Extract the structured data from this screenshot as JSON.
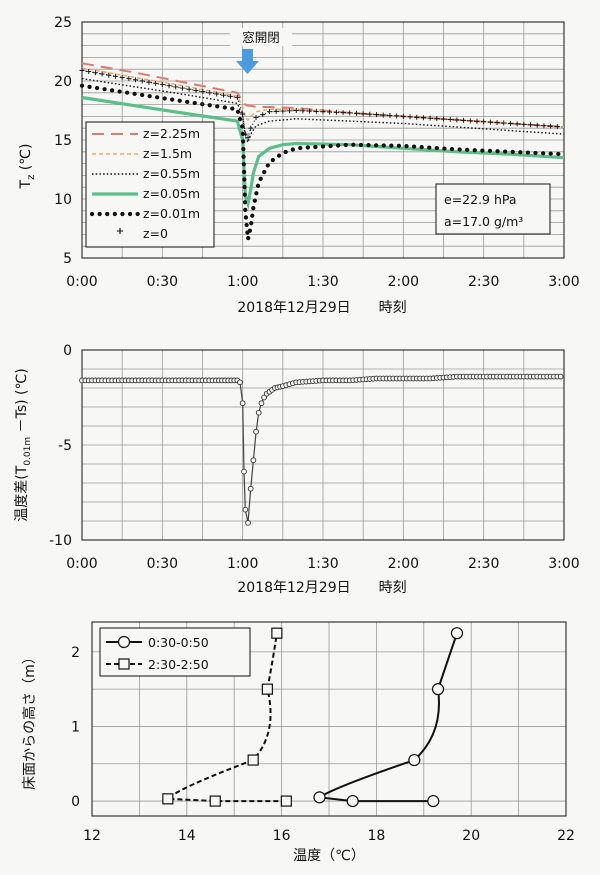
{
  "colors": {
    "red_dashed": "#e07a6e",
    "orange_dashed": "#f2a86b",
    "green": "#5cbf8a",
    "black": "#111111",
    "marker_fill": "#f7f7f5",
    "arrow": "#4a9be0"
  },
  "chart_data": [
    {
      "type": "line",
      "title": "",
      "ylabel": "Tz(℃)",
      "xlabel": "2018年12月29日　　時刻",
      "xlim": [
        0,
        180
      ],
      "ylim": [
        5,
        25
      ],
      "x_ticks": [
        "0:00",
        "0:30",
        "1:00",
        "1:30",
        "2:00",
        "2:30",
        "3:00"
      ],
      "y_ticks": [
        "5",
        "10",
        "15",
        "20",
        "25"
      ],
      "grid": true,
      "legend_position": "left-bottom",
      "annotation_arrow": "窓開閉",
      "annotation_box": [
        "e=22.9 hPa",
        "a=17.0 g/m³"
      ],
      "series": [
        {
          "name": "z=2.25m",
          "style": "red-dashed",
          "x": [
            0,
            20,
            40,
            58,
            60,
            61,
            62,
            63,
            65,
            70,
            80,
            100,
            120,
            140,
            160,
            180
          ],
          "y": [
            21.5,
            20.7,
            19.8,
            19.0,
            18.3,
            18.0,
            17.9,
            17.9,
            17.8,
            17.8,
            17.7,
            17.3,
            17.0,
            16.7,
            16.4,
            16.1
          ]
        },
        {
          "name": "z=1.5m",
          "style": "orange-dashed",
          "x": [
            0,
            20,
            40,
            58,
            60,
            61,
            62,
            63,
            65,
            70,
            80,
            100,
            120,
            140,
            160,
            180
          ],
          "y": [
            21.1,
            20.3,
            19.5,
            18.7,
            17.8,
            16.9,
            16.7,
            17.0,
            17.4,
            17.6,
            17.6,
            17.3,
            17.0,
            16.7,
            16.4,
            16.1
          ]
        },
        {
          "name": "z=0.55m",
          "style": "dotted-fine",
          "x": [
            0,
            20,
            40,
            58,
            60,
            61,
            62,
            63,
            65,
            70,
            80,
            100,
            120,
            140,
            160,
            180
          ],
          "y": [
            20.2,
            19.5,
            18.8,
            18.1,
            17.0,
            15.3,
            14.8,
            15.5,
            16.2,
            16.6,
            16.8,
            16.6,
            16.4,
            16.1,
            15.8,
            15.5
          ]
        },
        {
          "name": "z=0.05m",
          "style": "green-thick",
          "x": [
            0,
            20,
            40,
            58,
            60,
            61,
            62,
            63,
            64,
            66,
            70,
            75,
            80,
            100,
            120,
            140,
            160,
            180
          ],
          "y": [
            18.6,
            17.9,
            17.2,
            16.6,
            15.0,
            10.3,
            9.6,
            10.8,
            12.2,
            13.6,
            14.3,
            14.6,
            14.7,
            14.6,
            14.3,
            14.0,
            13.8,
            13.5
          ]
        },
        {
          "name": "z=0.01m",
          "style": "big-dots",
          "x": [
            0,
            20,
            40,
            58,
            60,
            61,
            62,
            63,
            64,
            66,
            70,
            75,
            80,
            100,
            120,
            140,
            160,
            180
          ],
          "y": [
            19.6,
            18.9,
            18.2,
            17.6,
            16.0,
            9.0,
            6.6,
            7.6,
            9.3,
            11.4,
            13.1,
            13.9,
            14.3,
            14.6,
            14.5,
            14.2,
            14.0,
            13.8
          ]
        },
        {
          "name": "z=0",
          "style": "plus",
          "x": [
            0,
            20,
            40,
            58,
            60,
            61,
            62,
            63,
            65,
            70,
            80,
            100,
            120,
            140,
            160,
            180
          ],
          "y": [
            20.9,
            20.1,
            19.3,
            18.6,
            17.2,
            15.5,
            15.2,
            16.0,
            16.9,
            17.4,
            17.5,
            17.3,
            17.0,
            16.7,
            16.4,
            16.1
          ]
        }
      ]
    },
    {
      "type": "line",
      "title": "",
      "ylabel": "温度差(T0.01m－Ts)(℃)",
      "xlabel": "2018年12月29日　　時刻",
      "xlim": [
        0,
        180
      ],
      "ylim": [
        -10,
        0
      ],
      "x_ticks": [
        "0:00",
        "0:30",
        "1:00",
        "1:30",
        "2:00",
        "2:30",
        "3:00"
      ],
      "y_ticks": [
        "0",
        "-5",
        "-10"
      ],
      "grid": true,
      "series": [
        {
          "name": "",
          "x": [
            0,
            10,
            20,
            30,
            40,
            50,
            58,
            59,
            60,
            60.5,
            61,
            62,
            63,
            64,
            65,
            66,
            67,
            68,
            69,
            70,
            72,
            75,
            80,
            90,
            100,
            110,
            120,
            130,
            140,
            150,
            160,
            170,
            180
          ],
          "y": [
            -1.6,
            -1.6,
            -1.6,
            -1.6,
            -1.6,
            -1.6,
            -1.6,
            -1.7,
            -2.8,
            -6.4,
            -8.4,
            -9.1,
            -7.3,
            -5.8,
            -4.3,
            -3.3,
            -2.8,
            -2.5,
            -2.3,
            -2.2,
            -2.0,
            -1.9,
            -1.7,
            -1.6,
            -1.6,
            -1.5,
            -1.5,
            -1.5,
            -1.4,
            -1.4,
            -1.4,
            -1.4,
            -1.4
          ]
        }
      ]
    },
    {
      "type": "line",
      "title": "",
      "xlabel": "温度（℃）",
      "ylabel": "床面からの高さ（m）",
      "xlim": [
        12,
        22
      ],
      "ylim": [
        -0.2,
        2.4
      ],
      "x_ticks": [
        "12",
        "14",
        "16",
        "18",
        "20",
        "22"
      ],
      "y_ticks": [
        "0",
        "1",
        "2"
      ],
      "grid": true,
      "legend_position": "top-left",
      "series": [
        {
          "name": "0:30-0:50",
          "style": "solid-circle",
          "x": [
            19.2,
            17.5,
            16.8,
            18.8,
            19.3,
            19.7
          ],
          "y": [
            0.0,
            0.0,
            0.05,
            0.55,
            1.5,
            2.25
          ]
        },
        {
          "name": "2:30-2:50",
          "style": "dashed-square",
          "x": [
            16.1,
            14.6,
            13.6,
            15.4,
            15.7,
            15.9
          ],
          "y": [
            0.0,
            0.0,
            0.03,
            0.55,
            1.5,
            2.25
          ]
        }
      ]
    }
  ]
}
